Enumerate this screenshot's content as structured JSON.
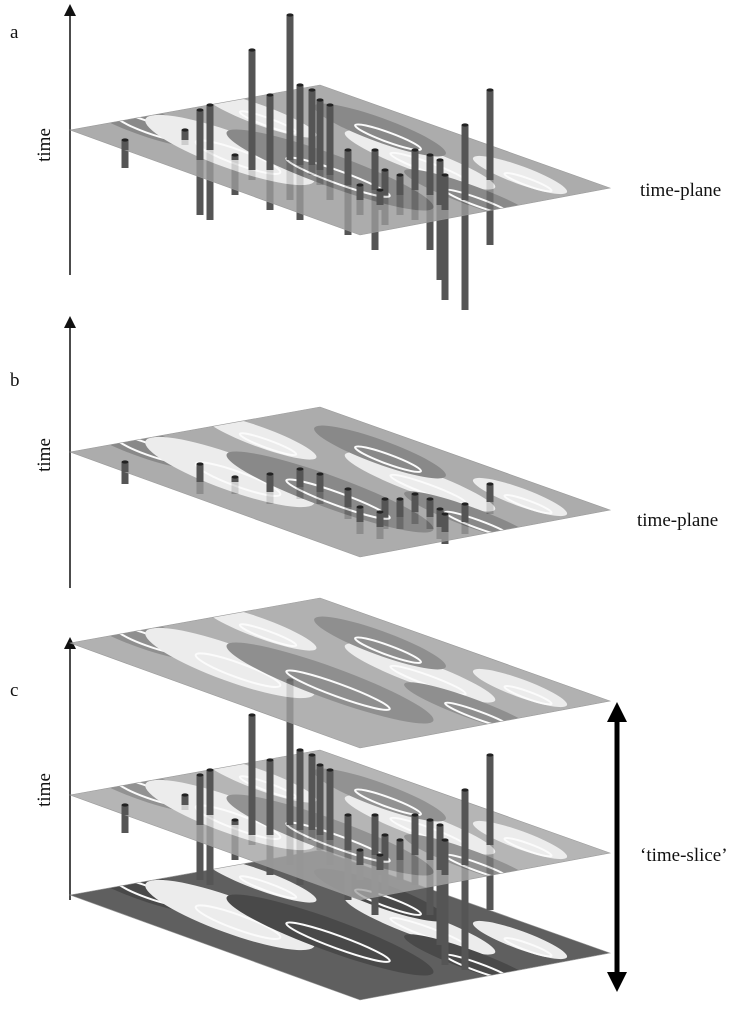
{
  "panels": [
    {
      "letter": "a",
      "axis_label": "time",
      "plane_label": "time-plane"
    },
    {
      "letter": "b",
      "axis_label": "time",
      "plane_label": "time-plane"
    },
    {
      "letter": "c",
      "axis_label": "time",
      "plane_label": "‘time-slice’"
    }
  ]
}
